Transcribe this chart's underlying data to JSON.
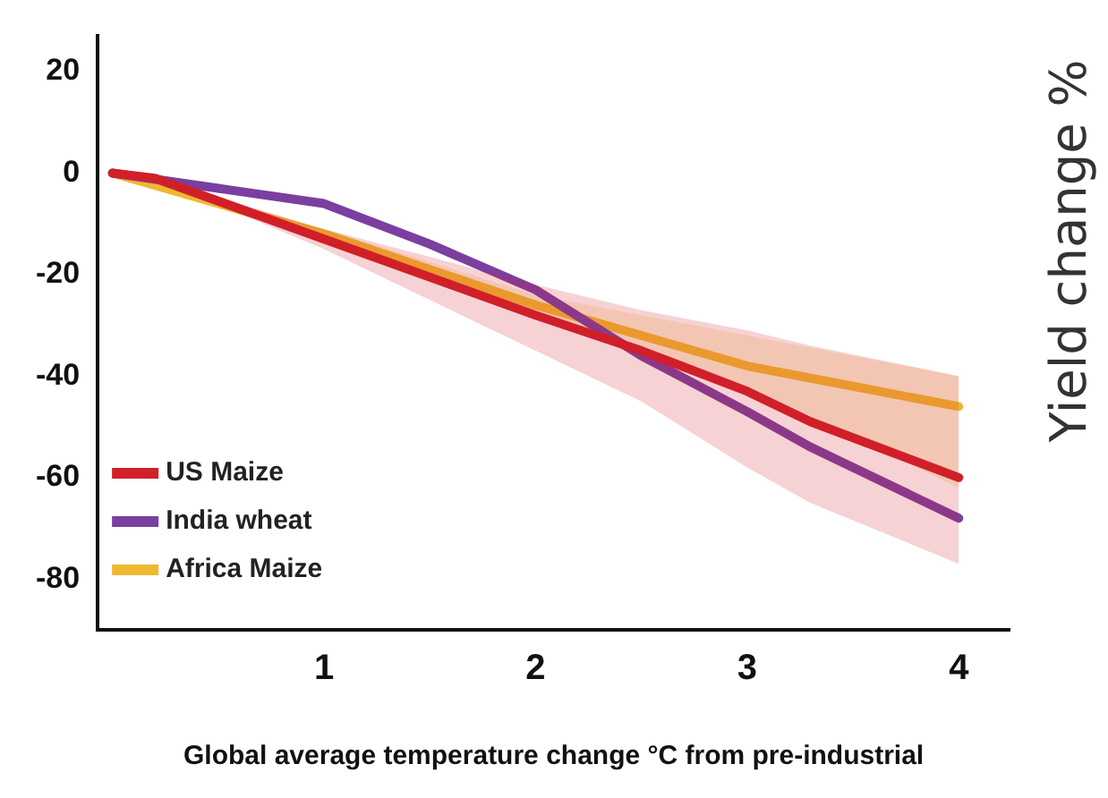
{
  "chart_data": {
    "type": "line",
    "xlabel": "Global average temperature change °C from pre-industrial",
    "ylabel": "Yield change %",
    "xlim": [
      -0.07,
      4.24
    ],
    "ylim": [
      -90,
      27
    ],
    "xticks": [
      1,
      2,
      3,
      4
    ],
    "yticks": [
      20,
      0,
      -20,
      -40,
      -60,
      -80
    ],
    "grid": false,
    "legend": "bottom left",
    "marker": "none",
    "line_style": "solid",
    "series": [
      {
        "name": "US Maize",
        "color": "#d0202a",
        "x": [
          0,
          0.2,
          1,
          2,
          2.5,
          3,
          3.3,
          4
        ],
        "values": [
          0,
          -1,
          -13,
          -28,
          -35,
          -43,
          -49,
          -60
        ],
        "lower": [
          0,
          -1,
          -15,
          -35,
          -45,
          -58,
          -65,
          -77
        ],
        "upper": [
          0,
          -1,
          -11,
          -22,
          -27,
          -31,
          -34,
          -40
        ]
      },
      {
        "name": "India wheat",
        "color": "#7b3fa0",
        "x": [
          0,
          0.5,
          1,
          1.5,
          2,
          2.5,
          3,
          3.3,
          4
        ],
        "values": [
          0,
          -3,
          -6,
          -14,
          -23,
          -36,
          -47,
          -54,
          -68
        ]
      },
      {
        "name": "Africa Maize",
        "color": "#f0b830",
        "x": [
          0,
          1,
          2,
          2.5,
          3,
          3.5,
          4
        ],
        "values": [
          0,
          -12,
          -26,
          -32,
          -38,
          -42,
          -46
        ],
        "lower": [
          0,
          -13,
          -28,
          -35,
          -43,
          -52,
          -62
        ],
        "upper": [
          0,
          -11,
          -24,
          -28,
          -32,
          -36,
          -40
        ]
      }
    ]
  }
}
